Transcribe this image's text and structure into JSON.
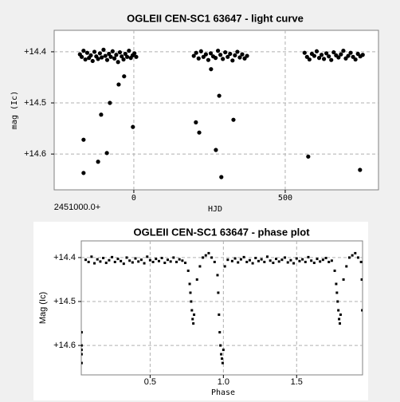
{
  "chart_data": [
    {
      "type": "scatter",
      "title": "OGLEII CEN-SC1 63647 - light curve",
      "xlabel": "HJD",
      "ylabel": "mag (Ic)",
      "x_offset_label": "2451000.0+",
      "color": "#000000",
      "grid": true,
      "y_reversed": true,
      "xlim": [
        -263,
        808
      ],
      "xticks": [
        0,
        500
      ],
      "ylim": [
        14.358,
        14.67
      ],
      "yticks": [
        {
          "value": 14.4,
          "label": "+14.4"
        },
        {
          "value": 14.5,
          "label": "+14.5"
        },
        {
          "value": 14.6,
          "label": "+14.6"
        }
      ],
      "x": [
        -178,
        -172,
        -166,
        -160,
        -154,
        -148,
        -142,
        -136,
        -130,
        -124,
        -118,
        -112,
        -106,
        -100,
        -94,
        -88,
        -82,
        -76,
        -70,
        -64,
        -58,
        -52,
        -46,
        -40,
        -34,
        -28,
        -22,
        -16,
        -10,
        -4,
        2,
        8,
        198,
        206,
        214,
        222,
        230,
        238,
        246,
        254,
        262,
        270,
        278,
        286,
        294,
        302,
        310,
        318,
        326,
        334,
        342,
        350,
        358,
        366,
        374,
        564,
        572,
        580,
        588,
        596,
        604,
        612,
        620,
        628,
        636,
        644,
        652,
        660,
        668,
        676,
        684,
        692,
        700,
        708,
        716,
        724,
        732,
        740,
        748,
        756,
        -166,
        -166,
        -118,
        -108,
        -89,
        -79,
        -50,
        -32,
        -3,
        205,
        216,
        255,
        282,
        271,
        289,
        329,
        576,
        747
      ],
      "values": [
        14.405,
        14.41,
        14.398,
        14.415,
        14.402,
        14.412,
        14.407,
        14.418,
        14.4,
        14.409,
        14.414,
        14.403,
        14.411,
        14.396,
        14.408,
        14.416,
        14.404,
        14.41,
        14.399,
        14.413,
        14.406,
        14.42,
        14.401,
        14.409,
        14.415,
        14.404,
        14.41,
        14.398,
        14.412,
        14.407,
        14.403,
        14.41,
        14.408,
        14.402,
        14.413,
        14.399,
        14.41,
        14.405,
        14.416,
        14.403,
        14.409,
        14.412,
        14.398,
        14.406,
        14.414,
        14.401,
        14.41,
        14.404,
        14.417,
        14.407,
        14.4,
        14.411,
        14.405,
        14.413,
        14.408,
        14.402,
        14.41,
        14.415,
        14.404,
        14.408,
        14.399,
        14.412,
        14.406,
        14.414,
        14.403,
        14.409,
        14.416,
        14.401,
        14.407,
        14.411,
        14.405,
        14.398,
        14.413,
        14.408,
        14.402,
        14.41,
        14.415,
        14.404,
        14.409,
        14.406,
        14.572,
        14.637,
        14.615,
        14.523,
        14.598,
        14.5,
        14.464,
        14.448,
        14.547,
        14.538,
        14.558,
        14.434,
        14.486,
        14.592,
        14.645,
        14.533,
        14.605,
        14.631
      ]
    },
    {
      "type": "scatter",
      "title": "OGLEII CEN-SC1 63647 - phase plot",
      "xlabel": "Phase",
      "ylabel": "Mag (Ic)",
      "color": "#000000",
      "grid": true,
      "y_reversed": true,
      "xlim": [
        0.03,
        1.95
      ],
      "xticks": [
        0.5,
        {
          "value": 1,
          "label": "1.0"
        },
        1.5
      ],
      "ylim": [
        14.362,
        14.667
      ],
      "yticks": [
        {
          "value": 14.4,
          "label": "+14.4"
        },
        {
          "value": 14.5,
          "label": "+14.5"
        },
        {
          "value": 14.6,
          "label": "+14.6"
        }
      ],
      "x": [
        0.032,
        0.032,
        0.032,
        0.032,
        0.032,
        0.06,
        0.08,
        0.1,
        0.12,
        0.14,
        0.16,
        0.18,
        0.2,
        0.22,
        0.24,
        0.26,
        0.28,
        0.3,
        0.32,
        0.34,
        0.36,
        0.38,
        0.4,
        0.42,
        0.44,
        0.46,
        0.48,
        0.5,
        0.52,
        0.54,
        0.56,
        0.58,
        0.6,
        0.62,
        0.64,
        0.66,
        0.68,
        0.7,
        0.72,
        0.74,
        0.76,
        0.77,
        0.775,
        0.78,
        0.785,
        0.79,
        0.795,
        0.8,
        0.82,
        0.84,
        0.86,
        0.88,
        0.9,
        0.92,
        0.94,
        0.96,
        0.965,
        0.97,
        0.975,
        0.98,
        0.985,
        0.99,
        0.995,
        1.0,
        1.01,
        1.03,
        1.06,
        1.08,
        1.1,
        1.12,
        1.14,
        1.16,
        1.18,
        1.2,
        1.22,
        1.24,
        1.26,
        1.28,
        1.3,
        1.32,
        1.34,
        1.36,
        1.38,
        1.4,
        1.42,
        1.44,
        1.46,
        1.48,
        1.5,
        1.52,
        1.54,
        1.56,
        1.58,
        1.6,
        1.62,
        1.64,
        1.66,
        1.68,
        1.7,
        1.72,
        1.74,
        1.76,
        1.77,
        1.775,
        1.78,
        1.785,
        1.79,
        1.795,
        1.8,
        1.82,
        1.84,
        1.86,
        1.88,
        1.9,
        1.92,
        1.94,
        1.945,
        1.948
      ],
      "values": [
        14.57,
        14.6,
        14.61,
        14.62,
        14.64,
        14.405,
        14.41,
        14.398,
        14.413,
        14.404,
        14.409,
        14.401,
        14.412,
        14.406,
        14.399,
        14.41,
        14.403,
        14.408,
        14.414,
        14.4,
        14.407,
        14.411,
        14.402,
        14.409,
        14.405,
        14.413,
        14.398,
        14.406,
        14.41,
        14.403,
        14.408,
        14.401,
        14.412,
        14.405,
        14.409,
        14.4,
        14.41,
        14.404,
        14.407,
        14.412,
        14.43,
        14.46,
        14.48,
        14.5,
        14.52,
        14.54,
        14.55,
        14.53,
        14.45,
        14.42,
        14.4,
        14.395,
        14.39,
        14.4,
        14.41,
        14.44,
        14.48,
        14.53,
        14.57,
        14.6,
        14.62,
        14.63,
        14.64,
        14.61,
        14.42,
        14.405,
        14.408,
        14.402,
        14.411,
        14.404,
        14.399,
        14.41,
        14.406,
        14.413,
        14.401,
        14.408,
        14.404,
        14.41,
        14.398,
        14.407,
        14.412,
        14.403,
        14.409,
        14.405,
        14.4,
        14.411,
        14.406,
        14.413,
        14.402,
        14.408,
        14.404,
        14.41,
        14.399,
        14.407,
        14.412,
        14.403,
        14.409,
        14.405,
        14.401,
        14.41,
        14.407,
        14.43,
        14.46,
        14.48,
        14.5,
        14.52,
        14.54,
        14.55,
        14.53,
        14.45,
        14.42,
        14.4,
        14.395,
        14.39,
        14.4,
        14.41,
        14.45,
        14.52
      ]
    }
  ]
}
